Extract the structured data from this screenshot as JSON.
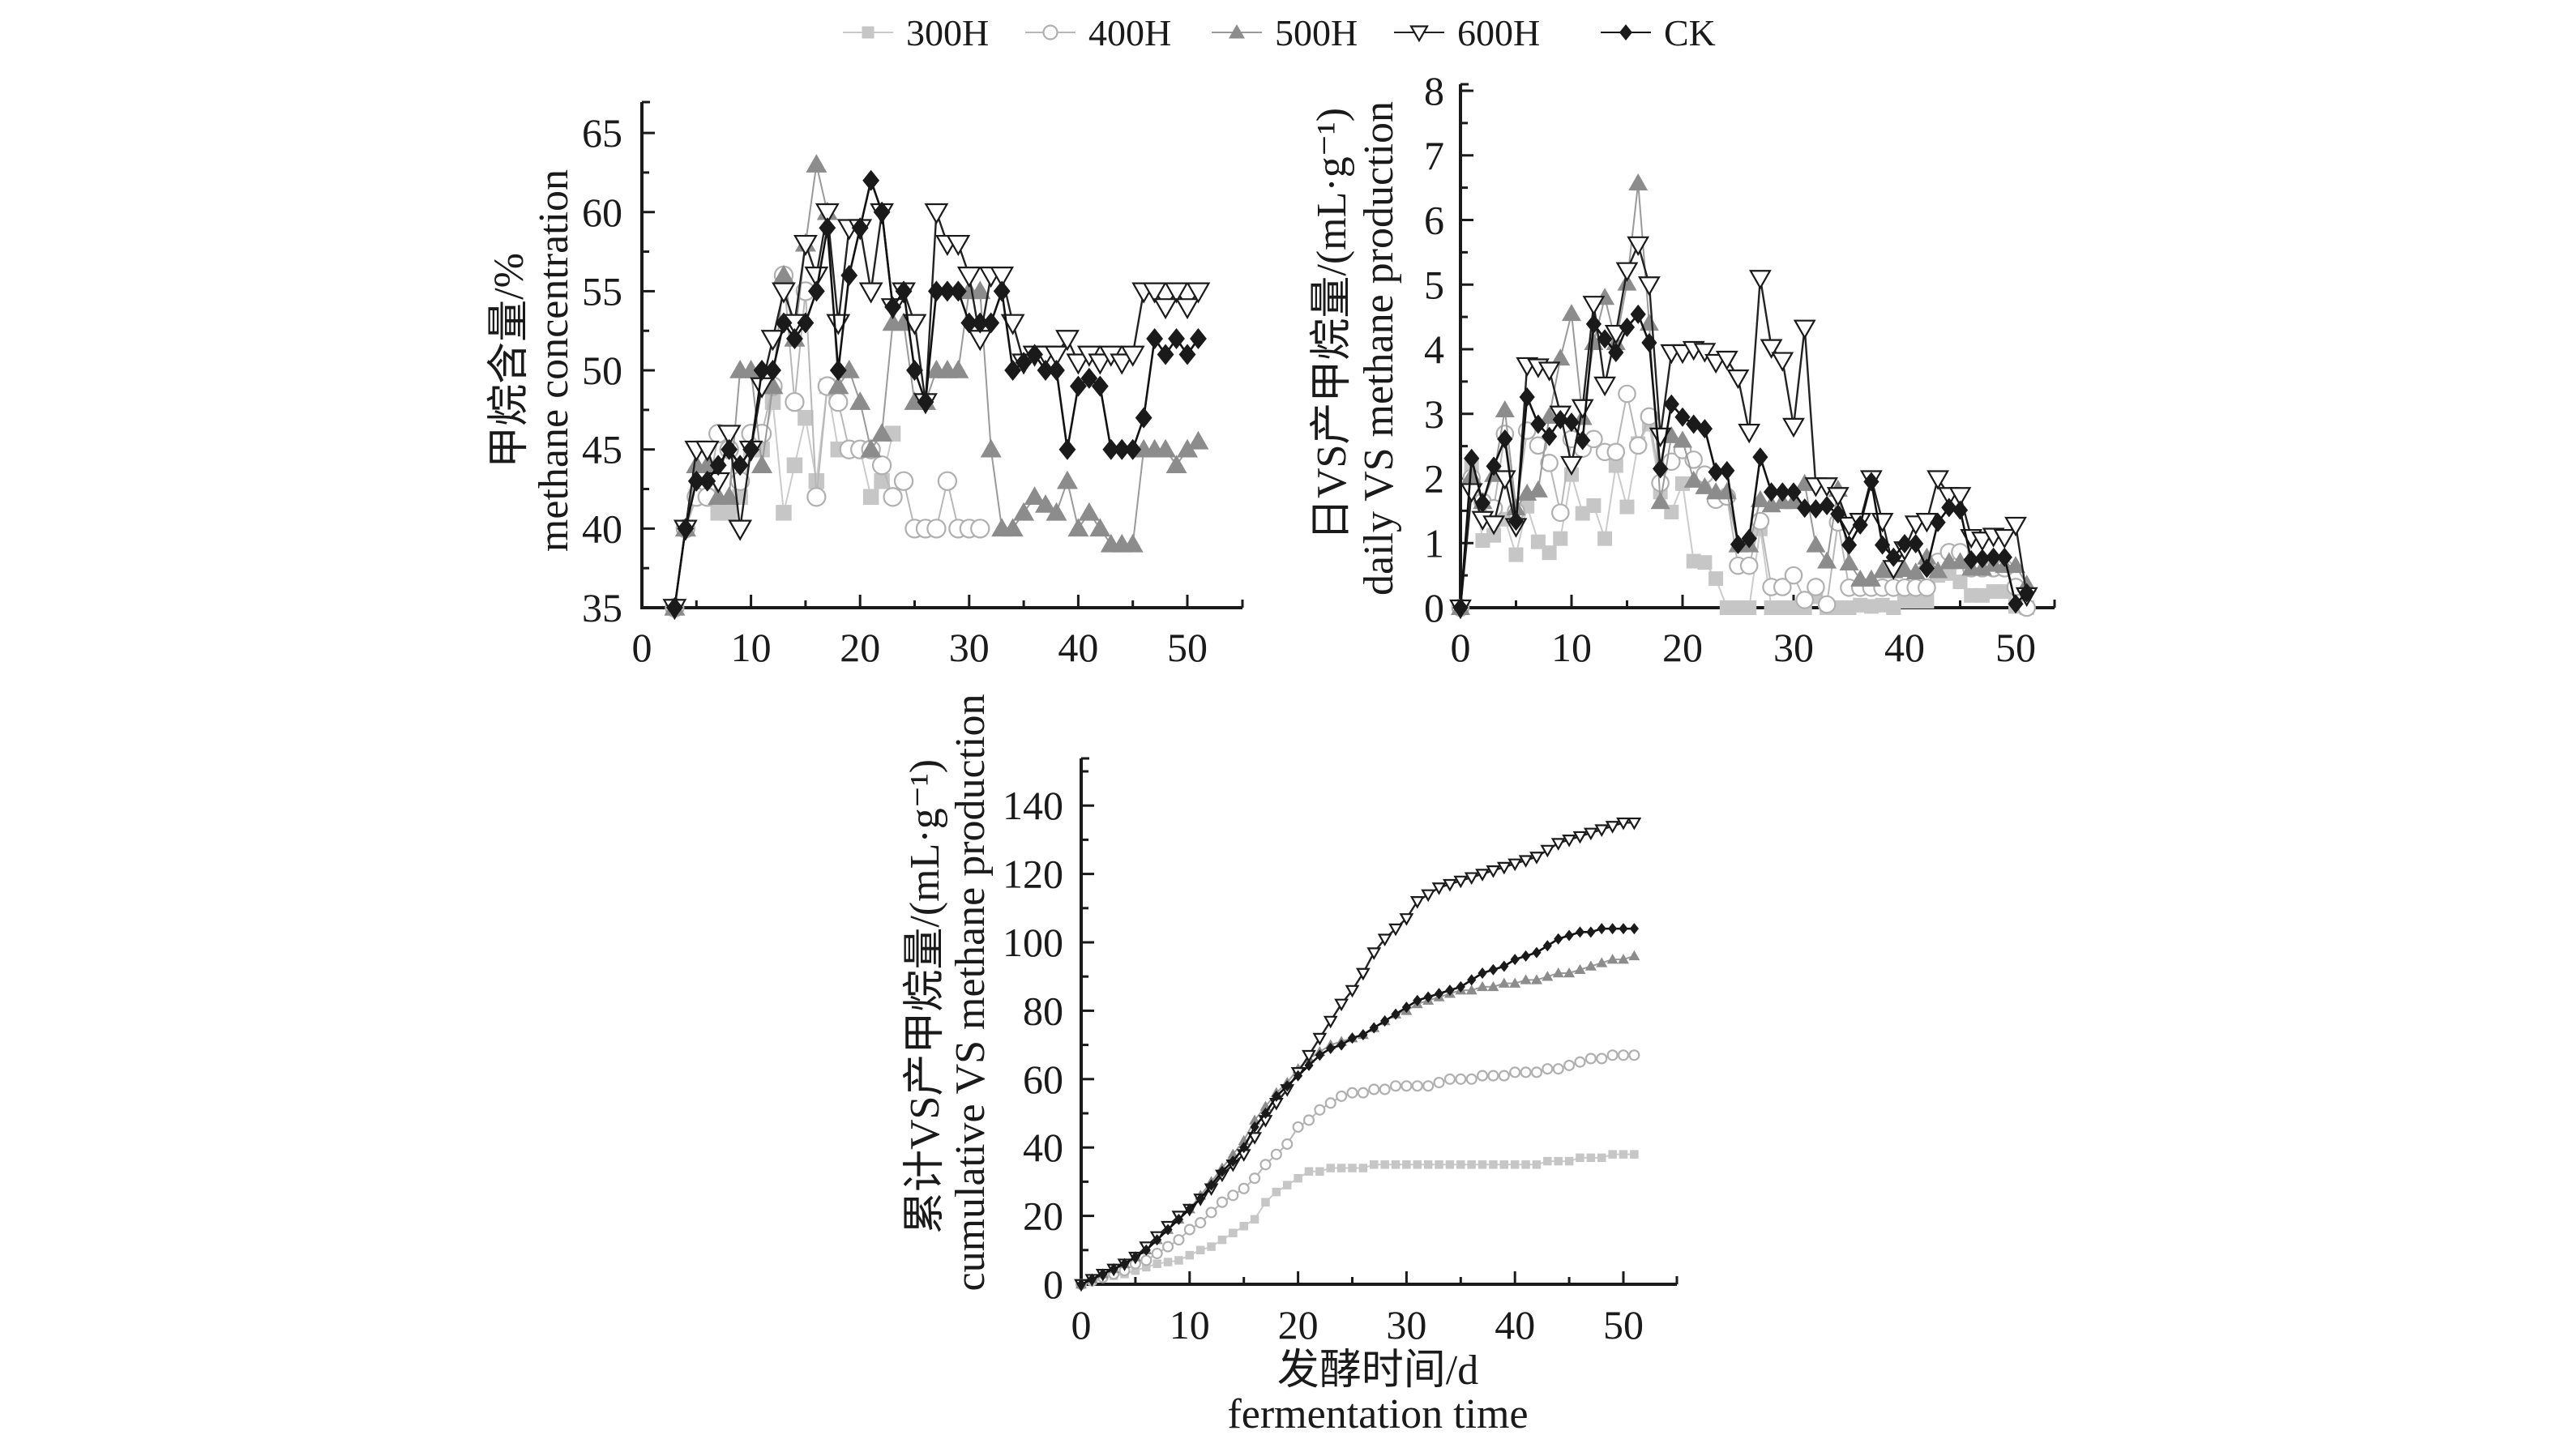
{
  "legend": {
    "position": "top-center",
    "entries": [
      {
        "key": "300H",
        "label": "300H",
        "marker": "square-filled",
        "color": "#c6c6c6"
      },
      {
        "key": "400H",
        "label": "400H",
        "marker": "circle-open",
        "color": "#b0b0b0"
      },
      {
        "key": "500H",
        "label": "500H",
        "marker": "triangle-up-filled",
        "color": "#8c8c8c"
      },
      {
        "key": "600H",
        "label": "600H",
        "marker": "triangle-down-open",
        "color": "#1a1a1a"
      },
      {
        "key": "CK",
        "label": "CK",
        "marker": "diamond-filled",
        "color": "#1a1a1a"
      }
    ]
  },
  "chart_data": [
    {
      "id": "methane-concentration",
      "type": "line",
      "title": "",
      "xlabel": "",
      "ylabel_cn": "甲烷含量/%",
      "ylabel_en": "methane concentration",
      "xlim": [
        0,
        55
      ],
      "ylim": [
        35,
        67
      ],
      "xticks": [
        0,
        10,
        20,
        30,
        40,
        50
      ],
      "yticks": [
        35,
        40,
        45,
        50,
        55,
        60,
        65
      ],
      "grid": false,
      "series": [
        {
          "name": "300H",
          "x_start": 3,
          "values": [
            35,
            40,
            42,
            42,
            41,
            41,
            42,
            45,
            45,
            48,
            41,
            44,
            47,
            43,
            49,
            45,
            45,
            45,
            42,
            43,
            46
          ]
        },
        {
          "name": "400H",
          "x_start": 3,
          "values": [
            35,
            40,
            42,
            42,
            46,
            45,
            43,
            46,
            46,
            49,
            56,
            48,
            55,
            42,
            49,
            48,
            45,
            45,
            45,
            44,
            42,
            43,
            40,
            40,
            40,
            43,
            40,
            40,
            40
          ]
        },
        {
          "name": "500H",
          "x_start": 3,
          "values": [
            35,
            40,
            44,
            44,
            42,
            42,
            50,
            50,
            44,
            49,
            56,
            52,
            58,
            63,
            60,
            49,
            50,
            48,
            45,
            46,
            53,
            53,
            48,
            48,
            50,
            50,
            50,
            55,
            55,
            45,
            40,
            40,
            41,
            42,
            41.5,
            41,
            43,
            40,
            41,
            40,
            39,
            39,
            39,
            45,
            45,
            45,
            44,
            45,
            45.5
          ]
        },
        {
          "name": "600H",
          "x_start": 3,
          "values": [
            35,
            40,
            45,
            45,
            43,
            46,
            40,
            45,
            49,
            52,
            55,
            53,
            58,
            56,
            60,
            53,
            59,
            59,
            55,
            60,
            54,
            55,
            53,
            48,
            60,
            58,
            58,
            56,
            52,
            56,
            56,
            53,
            50.5,
            51,
            51,
            51,
            52,
            50.5,
            51,
            50.5,
            51,
            50.5,
            51,
            55,
            55,
            54,
            55,
            54,
            55
          ]
        },
        {
          "name": "CK",
          "x_start": 3,
          "values": [
            35,
            40,
            43,
            43,
            44,
            45,
            44,
            45,
            50,
            50,
            53,
            52,
            53,
            55,
            59,
            50,
            56,
            59,
            62,
            60,
            54,
            55,
            50,
            48,
            55,
            55,
            55,
            53,
            53,
            53,
            55,
            50,
            50.5,
            51,
            50,
            50,
            45,
            49,
            49.5,
            49,
            45,
            45,
            45,
            47,
            52,
            51,
            52,
            51,
            52
          ]
        }
      ]
    },
    {
      "id": "daily-vs-methane",
      "type": "line",
      "title": "",
      "xlabel": "",
      "ylabel_cn": "日VS产甲烷量/(mL·g⁻¹)",
      "ylabel_en": "daily VS methane production",
      "xlim": [
        0,
        54
      ],
      "ylim": [
        0,
        8
      ],
      "xticks": [
        0,
        10,
        20,
        30,
        40,
        50
      ],
      "yticks": [
        0,
        1,
        2,
        3,
        4,
        5,
        6,
        7,
        8
      ],
      "grid": false,
      "series": [
        {
          "name": "300H",
          "x_start": 0,
          "values": [
            0,
            2.19,
            1.04,
            1.12,
            1.37,
            0.82,
            1.57,
            1.02,
            0.85,
            1.07,
            2.06,
            1.46,
            1.58,
            1.07,
            2.2,
            1.56,
            2.54,
            2.84,
            1.79,
            1.48,
            1.92,
            0.72,
            0.7,
            0.45,
            0,
            0,
            0,
            1.22,
            0,
            0,
            0,
            0,
            0.17,
            0,
            0,
            0,
            0.04,
            0.02,
            0.04,
            0,
            0.1,
            0.1,
            0.1,
            0.5,
            0.53,
            0.4,
            0.19,
            0.19,
            0.25,
            0.25,
            0.02,
            0
          ]
        },
        {
          "name": "400H",
          "x_start": 0,
          "values": [
            0,
            2.01,
            1.64,
            1.54,
            2.69,
            1.49,
            2.74,
            2.51,
            2.24,
            1.47,
            2.61,
            2.46,
            2.61,
            2.41,
            2.41,
            3.31,
            2.51,
            2.96,
            1.93,
            2.26,
            2.44,
            2.29,
            2.06,
            1.67,
            1.72,
            0.65,
            0.65,
            1.34,
            0.32,
            0.32,
            0.5,
            0.12,
            0.32,
            0.05,
            1.32,
            0.31,
            0.31,
            0.31,
            0.31,
            0.31,
            0.31,
            0.31,
            0.31,
            0.71,
            0.86,
            0.86,
            0.61,
            0.61,
            0.61,
            0.61,
            0.32,
            0
          ]
        },
        {
          "name": "500H",
          "x_start": 0,
          "values": [
            0,
            2.04,
            1.64,
            2.06,
            3.06,
            1.54,
            1.77,
            1.82,
            2.96,
            3.86,
            4.55,
            2.94,
            4.1,
            4.8,
            4.1,
            5.02,
            6.57,
            4.4,
            1.64,
            2.66,
            2.59,
            1.97,
            1.87,
            1.79,
            1.79,
            0.97,
            0.97,
            1.67,
            1.59,
            1.64,
            1.64,
            1.92,
            0.97,
            0.72,
            1.83,
            0.69,
            0.44,
            0.44,
            0.57,
            0.57,
            0.59,
            0.55,
            0.78,
            0.57,
            0.71,
            0.71,
            0.61,
            0.61,
            0.67,
            0.65,
            0.65,
            0.36
          ]
        },
        {
          "name": "600H",
          "x_start": 0,
          "values": [
            0,
            1.8,
            1.37,
            1.3,
            2.0,
            1.26,
            3.75,
            3.73,
            3.68,
            3.0,
            2.22,
            3.1,
            4.7,
            3.45,
            4.25,
            5.22,
            5.62,
            5.0,
            2.66,
            3.95,
            3.95,
            4.0,
            3.97,
            3.8,
            3.85,
            3.56,
            2.72,
            5.1,
            4.03,
            3.83,
            2.81,
            4.33,
            1.89,
            1.89,
            1.74,
            1.28,
            1.34,
            2.0,
            1.34,
            0.61,
            0.9,
            1.3,
            1.34,
            2.0,
            1.74,
            1.74,
            1.09,
            1.05,
            1.11,
            1.09,
            1.28,
            0.19
          ]
        },
        {
          "name": "CK",
          "x_start": 0,
          "values": [
            0,
            2.31,
            1.62,
            2.19,
            2.61,
            1.34,
            3.26,
            2.84,
            2.65,
            2.91,
            2.87,
            2.59,
            4.39,
            4.16,
            3.95,
            4.34,
            4.54,
            4.1,
            2.15,
            3.15,
            2.95,
            2.84,
            2.77,
            2.1,
            2.12,
            0.98,
            1.07,
            2.33,
            1.79,
            1.79,
            1.79,
            1.54,
            1.53,
            1.58,
            1.45,
            0.97,
            1.28,
            1.95,
            0.97,
            0.78,
            0.99,
            0.99,
            0.61,
            1.32,
            1.55,
            1.51,
            0.74,
            0.76,
            0.78,
            0.78,
            0.06,
            0.23
          ]
        }
      ]
    },
    {
      "id": "cumulative-vs-methane",
      "type": "line",
      "title": "",
      "xlabel_cn": "发酵时间/d",
      "xlabel_en": "fermentation time",
      "ylabel_cn": "累计VS产甲烷量/(mL·g⁻¹)",
      "ylabel_en": "cumulative VS methane production",
      "xlim": [
        0,
        55
      ],
      "ylim": [
        0,
        154
      ],
      "xticks": [
        0,
        10,
        20,
        30,
        40,
        50
      ],
      "yticks": [
        0,
        20,
        40,
        60,
        80,
        100,
        120,
        140
      ],
      "grid": false,
      "series": [
        {
          "name": "300H",
          "x_start": 0,
          "values": [
            0,
            1,
            2,
            2.5,
            3,
            4,
            5,
            6,
            6.5,
            7,
            8.5,
            10,
            11,
            13,
            15,
            17,
            19,
            24,
            27,
            29,
            31,
            33,
            33,
            34,
            34,
            34,
            34,
            35,
            35,
            35,
            35,
            35,
            35,
            35,
            35,
            35,
            35,
            35,
            35,
            35,
            35,
            35,
            35,
            36,
            36,
            36,
            37,
            37,
            37,
            38,
            38,
            38
          ]
        },
        {
          "name": "400H",
          "x_start": 0,
          "values": [
            0,
            1,
            2,
            3,
            4,
            6,
            7,
            9,
            11,
            13,
            16,
            18,
            21,
            24,
            26,
            28,
            31,
            35,
            38,
            41,
            46,
            48,
            51,
            53,
            55,
            56,
            56,
            57,
            57,
            58,
            58,
            58,
            58,
            59,
            60,
            60,
            60,
            61,
            61,
            61,
            62,
            62,
            62,
            63,
            63,
            64,
            65,
            66,
            66,
            67,
            67,
            67
          ]
        },
        {
          "name": "500H",
          "x_start": 0,
          "values": [
            0,
            1.5,
            3,
            4.5,
            6,
            8,
            10,
            13,
            16,
            19,
            22,
            26,
            30,
            34,
            38,
            42,
            48,
            52,
            56,
            59,
            63,
            66,
            68,
            70,
            71,
            72,
            73,
            75,
            77,
            79,
            80,
            82,
            83,
            84,
            85,
            86,
            86,
            87,
            87,
            88,
            88,
            89,
            89,
            90,
            91,
            91,
            92,
            93,
            94,
            95,
            95,
            96
          ]
        },
        {
          "name": "600H",
          "x_start": 0,
          "values": [
            0,
            1.5,
            3,
            4.5,
            6,
            8,
            11,
            14,
            17,
            20,
            22,
            25,
            28,
            32,
            35,
            38,
            43,
            48,
            53,
            57,
            62,
            67,
            72,
            77,
            82,
            86,
            91,
            97,
            101,
            104,
            107,
            112,
            114,
            116,
            117,
            118,
            119,
            120,
            121,
            122,
            123,
            124,
            125,
            127,
            129,
            130,
            131,
            132,
            133,
            134,
            135,
            135
          ]
        },
        {
          "name": "CK",
          "x_start": 0,
          "values": [
            0,
            1.5,
            3,
            4.5,
            6,
            8,
            10,
            13,
            16,
            19,
            22,
            25,
            29,
            33,
            36,
            40,
            46,
            50,
            55,
            58,
            61,
            64,
            67,
            69,
            70,
            72,
            73,
            75,
            77,
            79,
            81,
            83,
            84,
            85,
            86,
            87,
            89,
            91,
            92,
            93,
            95,
            96,
            97,
            99,
            101,
            102,
            103,
            103,
            104,
            104,
            104,
            104
          ]
        }
      ]
    }
  ]
}
